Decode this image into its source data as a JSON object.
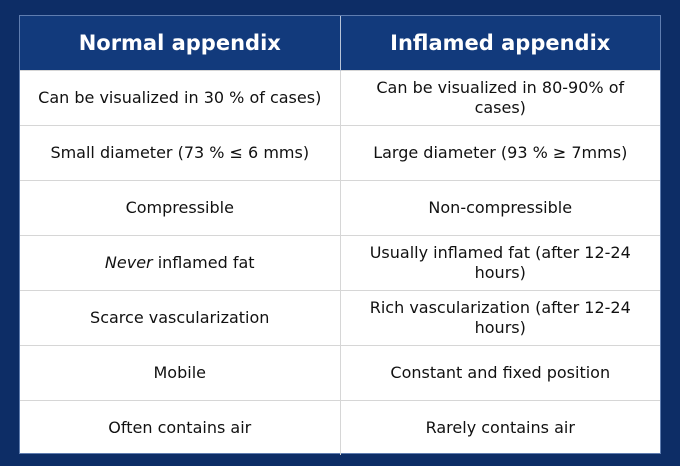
{
  "table": {
    "headers": [
      "Normal appendix",
      "Inflamed appendix"
    ],
    "rows": [
      {
        "normal": "Can be visualized in  30 % of cases)",
        "inflamed": "Can be visualized in 80-90% of cases)"
      },
      {
        "normal": "Small diameter (73 % ≤ 6 mms)",
        "inflamed": "Large diameter (93 % ≥ 7mms)"
      },
      {
        "normal": "Compressible",
        "inflamed": "Non-compressible"
      },
      {
        "normal_emph": "Never",
        "normal_rest": " inflamed fat",
        "inflamed": "Usually inflamed fat (after 12-24 hours)"
      },
      {
        "normal": "Scarce vascularization",
        "inflamed": "Rich vascularization (after 12-24 hours)"
      },
      {
        "normal": "Mobile",
        "inflamed": "Constant and fixed position"
      },
      {
        "normal": "Often contains air",
        "inflamed": "Rarely contains air"
      }
    ]
  },
  "colors": {
    "background": "#0d2d66",
    "header_fill": "#123a7c",
    "header_text": "#ffffff",
    "body_text": "#111111"
  }
}
